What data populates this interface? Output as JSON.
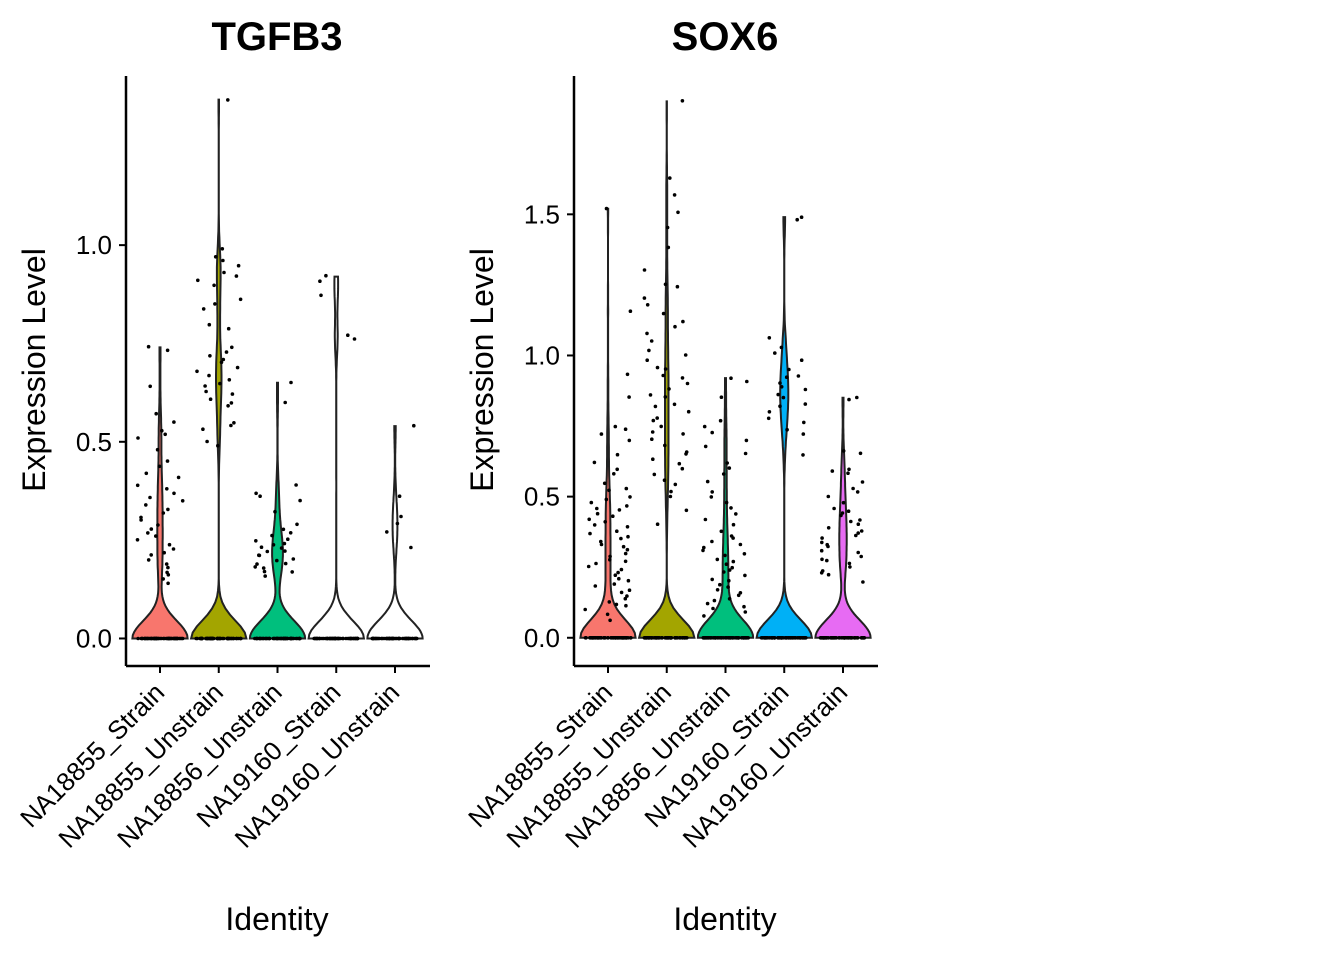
{
  "chart_data": [
    {
      "type": "violin",
      "title": "TGFB3",
      "xlabel": "Identity",
      "ylabel": "Expression Level",
      "categories": [
        "NA18855_Strain",
        "NA18855_Unstrain",
        "NA18856_Unstrain",
        "NA19160_Strain",
        "NA19160_Unstrain"
      ],
      "ylim": [
        -0.07,
        1.43
      ],
      "yticks": [
        0.0,
        0.5,
        1.0
      ],
      "ytick_labels": [
        "0.0",
        "0.5",
        "1.0"
      ],
      "fill_colors": [
        "#F8766D",
        "#A3A500",
        "#00BF7D",
        "#00B0F6",
        "#E76BF3"
      ],
      "groups": [
        {
          "name": "NA18855_Strain",
          "max": 0.74,
          "density_peak": 0.0,
          "nonzero": [
            0.74,
            0.73,
            0.64,
            0.57,
            0.55,
            0.53,
            0.52,
            0.51,
            0.48,
            0.45,
            0.44,
            0.42,
            0.41,
            0.39,
            0.38,
            0.37,
            0.36,
            0.35,
            0.34,
            0.33,
            0.32,
            0.31,
            0.3,
            0.29,
            0.28,
            0.27,
            0.26,
            0.25,
            0.24,
            0.23,
            0.22,
            0.21,
            0.2,
            0.19,
            0.18,
            0.17,
            0.16,
            0.15,
            0.14
          ]
        },
        {
          "name": "NA18855_Unstrain",
          "max": 1.37,
          "density_peak": 0.0,
          "nonzero": [
            1.37,
            0.99,
            0.97,
            0.96,
            0.95,
            0.93,
            0.92,
            0.91,
            0.9,
            0.86,
            0.85,
            0.84,
            0.8,
            0.79,
            0.74,
            0.73,
            0.72,
            0.71,
            0.7,
            0.69,
            0.68,
            0.67,
            0.66,
            0.65,
            0.64,
            0.63,
            0.62,
            0.61,
            0.6,
            0.59,
            0.55,
            0.54,
            0.53,
            0.5,
            0.49
          ]
        },
        {
          "name": "NA18856_Unstrain",
          "max": 0.65,
          "density_peak": 0.0,
          "nonzero": [
            0.65,
            0.6,
            0.39,
            0.37,
            0.36,
            0.35,
            0.32,
            0.29,
            0.28,
            0.27,
            0.26,
            0.25,
            0.25,
            0.24,
            0.24,
            0.23,
            0.23,
            0.22,
            0.22,
            0.21,
            0.21,
            0.2,
            0.2,
            0.19,
            0.19,
            0.18,
            0.18,
            0.17,
            0.17,
            0.16
          ]
        },
        {
          "name": "NA19160_Strain",
          "max": 0.92,
          "density_peak": 0.0,
          "nonzero": [
            0.92,
            0.91,
            0.87,
            0.77,
            0.76
          ]
        },
        {
          "name": "NA19160_Unstrain",
          "max": 0.54,
          "density_peak": 0.0,
          "nonzero": [
            0.54,
            0.36,
            0.31,
            0.29,
            0.27,
            0.23
          ]
        }
      ]
    },
    {
      "type": "violin",
      "title": "SOX6",
      "xlabel": "Identity",
      "ylabel": "Expression Level",
      "categories": [
        "NA18855_Strain",
        "NA18855_Unstrain",
        "NA18856_Unstrain",
        "NA19160_Strain",
        "NA19160_Unstrain"
      ],
      "ylim": [
        -0.1,
        1.99
      ],
      "yticks": [
        0.0,
        0.5,
        1.0,
        1.5
      ],
      "ytick_labels": [
        "0.0",
        "0.5",
        "1.0",
        "1.5"
      ],
      "fill_colors": [
        "#F8766D",
        "#A3A500",
        "#00BF7D",
        "#00B0F6",
        "#E76BF3"
      ],
      "groups": [
        {
          "name": "NA18855_Strain",
          "max": 1.52,
          "density_peak": 0.0,
          "nonzero": [
            1.52,
            1.16,
            0.93,
            0.85,
            0.75,
            0.74,
            0.72,
            0.7,
            0.65,
            0.62,
            0.6,
            0.58,
            0.55,
            0.53,
            0.52,
            0.5,
            0.49,
            0.48,
            0.47,
            0.46,
            0.45,
            0.44,
            0.43,
            0.42,
            0.41,
            0.4,
            0.39,
            0.38,
            0.37,
            0.36,
            0.35,
            0.34,
            0.33,
            0.32,
            0.31,
            0.3,
            0.29,
            0.28,
            0.27,
            0.26,
            0.25,
            0.24,
            0.23,
            0.22,
            0.21,
            0.2,
            0.19,
            0.18,
            0.17,
            0.16,
            0.15,
            0.14,
            0.13,
            0.12,
            0.11,
            0.1,
            0.08,
            0.06
          ]
        },
        {
          "name": "NA18855_Unstrain",
          "max": 1.9,
          "density_peak": 0.0,
          "nonzero": [
            1.9,
            1.63,
            1.57,
            1.51,
            1.45,
            1.38,
            1.3,
            1.25,
            1.24,
            1.2,
            1.18,
            1.15,
            1.12,
            1.1,
            1.08,
            1.05,
            1.02,
            1.0,
            0.98,
            0.96,
            0.95,
            0.93,
            0.92,
            0.9,
            0.88,
            0.86,
            0.85,
            0.83,
            0.82,
            0.8,
            0.78,
            0.77,
            0.75,
            0.73,
            0.72,
            0.7,
            0.68,
            0.66,
            0.65,
            0.63,
            0.62,
            0.6,
            0.58,
            0.56,
            0.54,
            0.52,
            0.5,
            0.45,
            0.4
          ]
        },
        {
          "name": "NA18856_Unstrain",
          "max": 0.92,
          "density_peak": 0.0,
          "nonzero": [
            0.92,
            0.91,
            0.85,
            0.77,
            0.75,
            0.73,
            0.7,
            0.68,
            0.65,
            0.62,
            0.6,
            0.58,
            0.55,
            0.52,
            0.5,
            0.48,
            0.46,
            0.44,
            0.42,
            0.4,
            0.38,
            0.36,
            0.35,
            0.34,
            0.33,
            0.32,
            0.31,
            0.3,
            0.29,
            0.28,
            0.27,
            0.26,
            0.25,
            0.24,
            0.23,
            0.22,
            0.21,
            0.2,
            0.19,
            0.18,
            0.17,
            0.16,
            0.15,
            0.14,
            0.13,
            0.12,
            0.11,
            0.1,
            0.09,
            0.08
          ]
        },
        {
          "name": "NA19160_Strain",
          "max": 1.49,
          "density_peak": 0.0,
          "nonzero": [
            1.49,
            1.48,
            1.06,
            1.03,
            1.01,
            0.98,
            0.95,
            0.93,
            0.92,
            0.9,
            0.89,
            0.88,
            0.86,
            0.85,
            0.83,
            0.82,
            0.8,
            0.78,
            0.76,
            0.74,
            0.72,
            0.65
          ]
        },
        {
          "name": "NA19160_Unstrain",
          "max": 0.85,
          "density_peak": 0.0,
          "nonzero": [
            0.85,
            0.84,
            0.66,
            0.65,
            0.6,
            0.59,
            0.58,
            0.55,
            0.53,
            0.52,
            0.5,
            0.48,
            0.46,
            0.45,
            0.44,
            0.43,
            0.42,
            0.41,
            0.4,
            0.39,
            0.38,
            0.37,
            0.36,
            0.35,
            0.34,
            0.33,
            0.32,
            0.31,
            0.3,
            0.29,
            0.28,
            0.27,
            0.26,
            0.25,
            0.24,
            0.23,
            0.22,
            0.2
          ]
        }
      ]
    }
  ]
}
